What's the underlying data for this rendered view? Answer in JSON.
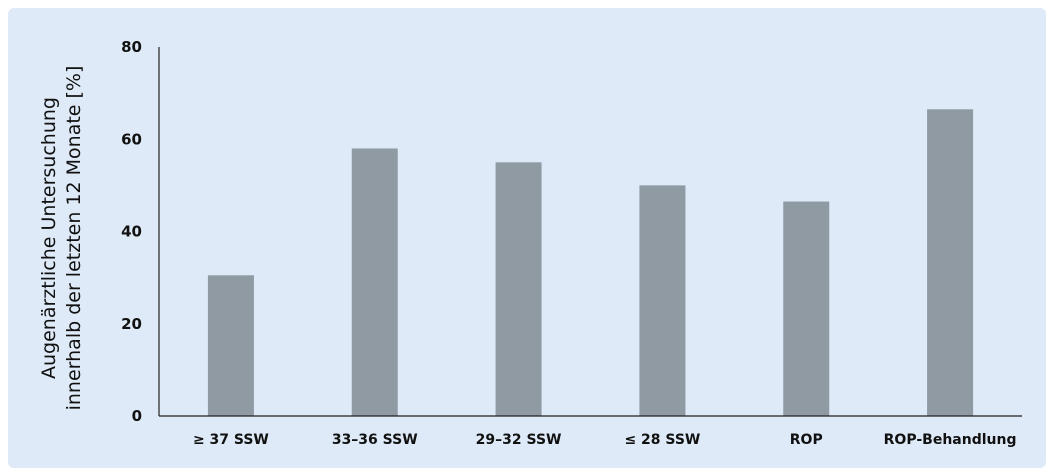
{
  "chart_data": {
    "type": "bar",
    "categories": [
      "≥ 37 SSW",
      "33–36 SSW",
      "29–32 SSW",
      "≤ 28 SSW",
      "ROP",
      "ROP-Behandlung"
    ],
    "values": [
      30.5,
      58,
      55,
      50,
      46.5,
      66.5
    ],
    "title": "",
    "xlabel": "",
    "ylabel_line1": "Augenärztliche Untersuchung",
    "ylabel_line2": "innerhalb der letzten 12 Monate  [%]",
    "ylim": [
      0,
      80
    ],
    "yticks": [
      "0",
      "20",
      "40",
      "60",
      "80"
    ],
    "grid": false,
    "colors": {
      "bar": "#8f9aa3",
      "background": "#deeaf7",
      "axis": "#222222"
    }
  }
}
